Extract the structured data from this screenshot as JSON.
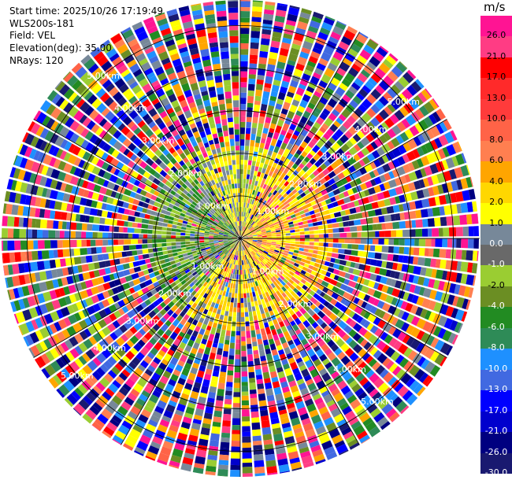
{
  "header": {
    "start_time": "Start time: 2025/10/26 17:19:49",
    "instrument": "WLS200s-181",
    "field": "Field: VEL",
    "elevation": "Elevation(deg): 35.00",
    "nrays": "NRays: 120"
  },
  "colorbar": {
    "unit": "m/s",
    "ticks": [
      "26.0",
      "21.0",
      "17.0",
      "13.0",
      "10.0",
      "8.0",
      "6.0",
      "4.0",
      "2.0",
      "1.0",
      "0.0",
      "-1.0",
      "-2.0",
      "-4.0",
      "-6.0",
      "-8.0",
      "-10.0",
      "-13.0",
      "-17.0",
      "-21.0",
      "-26.0",
      "-30.0"
    ],
    "colors": [
      "#ff1493",
      "#ff3c84",
      "#ff0000",
      "#ff2a2a",
      "#ff3b3b",
      "#ff6347",
      "#ff7f50",
      "#ffa500",
      "#ffd700",
      "#ffff00",
      "#778899",
      "#696969",
      "#9acd32",
      "#6b8e23",
      "#228b22",
      "#2e8b57",
      "#1e90ff",
      "#4169e1",
      "#0000ff",
      "#0000cd",
      "#000080",
      "#191970"
    ]
  },
  "range_labels": [
    "1.00km",
    "2.00km",
    "3.00km",
    "4.00km",
    "5.00km"
  ],
  "map": {
    "max_range_km": 5.6,
    "n_rays": 120,
    "range_rings_km": [
      1,
      2,
      3,
      4,
      5
    ],
    "spoke_angles_deg": [
      0,
      30,
      60,
      90,
      120,
      150,
      180,
      210,
      240,
      270,
      300,
      330
    ],
    "label_bearings_deg": [
      50,
      140,
      230,
      320
    ],
    "near_field_km": 2.15,
    "sector_palette": {
      "east": [
        "#ffa500",
        "#ffd700",
        "#ffff00",
        "#ff7f50"
      ],
      "west": [
        "#9acd32",
        "#6b8e23",
        "#778899",
        "#228b22"
      ],
      "south": [
        "#ffff00",
        "#ffd700",
        "#778899",
        "#ffa500"
      ],
      "north": [
        "#ffff00",
        "#9acd32",
        "#778899",
        "#ffd700"
      ]
    },
    "noise_palette": [
      "#ff1493",
      "#ff3c84",
      "#ff0000",
      "#0000ff",
      "#0000cd",
      "#000080",
      "#191970",
      "#4169e1",
      "#1e90ff",
      "#228b22",
      "#2e8b57",
      "#ff7f50",
      "#ff6347",
      "#ffff00",
      "#9acd32",
      "#6b8e23",
      "#778899",
      "#ffa500"
    ]
  }
}
